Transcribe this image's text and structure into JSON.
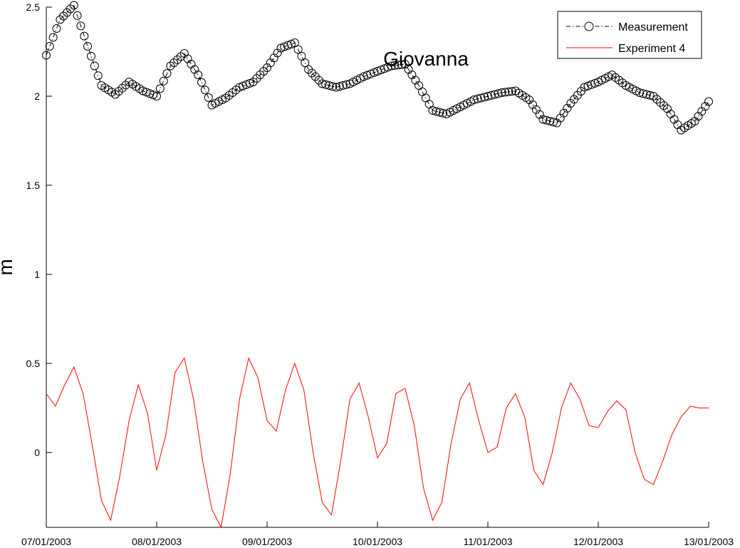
{
  "chart_data": {
    "type": "line",
    "title": "Giovanna",
    "xlabel": "",
    "ylabel": "m",
    "xlim": [
      "07/01/2003",
      "13/01/2003"
    ],
    "ylim": [
      -0.42,
      2.5
    ],
    "x_ticks": [
      "07/01/2003",
      "08/01/2003",
      "09/01/2003",
      "10/01/2003",
      "11/01/2003",
      "12/01/2003",
      "13/01/2003"
    ],
    "y_ticks": [
      0,
      0.5,
      1,
      1.5,
      2,
      2.5
    ],
    "y_tick_labels": [
      "0",
      "0.5",
      "1",
      "1.5",
      "2",
      "2.5"
    ],
    "grid": false,
    "legend_position": "top-right",
    "series": [
      {
        "name": "Measurement",
        "color": "#000000",
        "line_style": "dash-dot",
        "marker": "circle",
        "x": [
          "07/01/2003 00:00",
          "07/01/2003 03:00",
          "07/01/2003 06:00",
          "07/01/2003 09:00",
          "07/01/2003 12:00",
          "07/01/2003 15:00",
          "07/01/2003 18:00",
          "07/01/2003 21:00",
          "08/01/2003 00:00",
          "08/01/2003 03:00",
          "08/01/2003 06:00",
          "08/01/2003 09:00",
          "08/01/2003 12:00",
          "08/01/2003 15:00",
          "08/01/2003 18:00",
          "08/01/2003 21:00",
          "09/01/2003 00:00",
          "09/01/2003 03:00",
          "09/01/2003 06:00",
          "09/01/2003 09:00",
          "09/01/2003 12:00",
          "09/01/2003 15:00",
          "09/01/2003 18:00",
          "09/01/2003 21:00",
          "10/01/2003 00:00",
          "10/01/2003 03:00",
          "10/01/2003 06:00",
          "10/01/2003 09:00",
          "10/01/2003 12:00",
          "10/01/2003 15:00",
          "10/01/2003 18:00",
          "10/01/2003 21:00",
          "11/01/2003 00:00",
          "11/01/2003 03:00",
          "11/01/2003 06:00",
          "11/01/2003 09:00",
          "11/01/2003 12:00",
          "11/01/2003 15:00",
          "11/01/2003 18:00",
          "11/01/2003 21:00",
          "12/01/2003 00:00",
          "12/01/2003 03:00",
          "12/01/2003 06:00",
          "12/01/2003 09:00",
          "12/01/2003 12:00",
          "12/01/2003 15:00",
          "12/01/2003 18:00",
          "12/01/2003 21:00",
          "13/01/2003 00:00"
        ],
        "y": [
          2.23,
          2.43,
          2.51,
          2.28,
          2.06,
          2.01,
          2.08,
          2.03,
          2.0,
          2.17,
          2.24,
          2.12,
          1.95,
          1.99,
          2.05,
          2.08,
          2.16,
          2.27,
          2.3,
          2.15,
          2.07,
          2.05,
          2.07,
          2.11,
          2.14,
          2.17,
          2.18,
          2.06,
          1.92,
          1.9,
          1.94,
          1.98,
          2.0,
          2.02,
          2.03,
          1.98,
          1.87,
          1.85,
          1.96,
          2.05,
          2.08,
          2.12,
          2.06,
          2.02,
          2.0,
          1.93,
          1.81,
          1.86,
          1.97
        ]
      },
      {
        "name": "Experiment 4",
        "color": "#ff0000",
        "line_style": "solid",
        "marker": "none",
        "x": [
          "07/01/2003 00:00",
          "07/01/2003 02:00",
          "07/01/2003 04:00",
          "07/01/2003 06:00",
          "07/01/2003 08:00",
          "07/01/2003 10:00",
          "07/01/2003 12:00",
          "07/01/2003 14:00",
          "07/01/2003 16:00",
          "07/01/2003 18:00",
          "07/01/2003 20:00",
          "07/01/2003 22:00",
          "08/01/2003 00:00",
          "08/01/2003 02:00",
          "08/01/2003 04:00",
          "08/01/2003 06:00",
          "08/01/2003 08:00",
          "08/01/2003 10:00",
          "08/01/2003 12:00",
          "08/01/2003 14:00",
          "08/01/2003 16:00",
          "08/01/2003 18:00",
          "08/01/2003 20:00",
          "08/01/2003 22:00",
          "09/01/2003 00:00",
          "09/01/2003 02:00",
          "09/01/2003 04:00",
          "09/01/2003 06:00",
          "09/01/2003 08:00",
          "09/01/2003 10:00",
          "09/01/2003 12:00",
          "09/01/2003 14:00",
          "09/01/2003 16:00",
          "09/01/2003 18:00",
          "09/01/2003 20:00",
          "09/01/2003 22:00",
          "10/01/2003 00:00",
          "10/01/2003 02:00",
          "10/01/2003 04:00",
          "10/01/2003 06:00",
          "10/01/2003 08:00",
          "10/01/2003 10:00",
          "10/01/2003 12:00",
          "10/01/2003 14:00",
          "10/01/2003 16:00",
          "10/01/2003 18:00",
          "10/01/2003 20:00",
          "10/01/2003 22:00",
          "11/01/2003 00:00",
          "11/01/2003 02:00",
          "11/01/2003 04:00",
          "11/01/2003 06:00",
          "11/01/2003 08:00",
          "11/01/2003 10:00",
          "11/01/2003 12:00",
          "11/01/2003 14:00",
          "11/01/2003 16:00",
          "11/01/2003 18:00",
          "11/01/2003 20:00",
          "11/01/2003 22:00",
          "12/01/2003 00:00",
          "12/01/2003 02:00",
          "12/01/2003 04:00",
          "12/01/2003 06:00",
          "12/01/2003 08:00",
          "12/01/2003 10:00",
          "12/01/2003 12:00",
          "12/01/2003 14:00",
          "12/01/2003 16:00",
          "12/01/2003 18:00",
          "12/01/2003 20:00",
          "12/01/2003 22:00",
          "13/01/2003 00:00"
        ],
        "y": [
          0.33,
          0.26,
          0.38,
          0.48,
          0.33,
          0.04,
          -0.27,
          -0.38,
          -0.13,
          0.18,
          0.38,
          0.22,
          -0.1,
          0.1,
          0.45,
          0.53,
          0.3,
          -0.05,
          -0.32,
          -0.42,
          -0.12,
          0.3,
          0.53,
          0.42,
          0.18,
          0.12,
          0.35,
          0.5,
          0.35,
          0.0,
          -0.28,
          -0.35,
          -0.05,
          0.3,
          0.39,
          0.2,
          -0.03,
          0.05,
          0.33,
          0.36,
          0.15,
          -0.2,
          -0.38,
          -0.28,
          0.05,
          0.3,
          0.39,
          0.18,
          0.0,
          0.03,
          0.25,
          0.33,
          0.2,
          -0.1,
          -0.18,
          0.0,
          0.25,
          0.39,
          0.3,
          0.15,
          0.14,
          0.23,
          0.29,
          0.24,
          0.0,
          -0.15,
          -0.18,
          -0.05,
          0.1,
          0.2,
          0.26,
          0.25,
          0.25
        ]
      }
    ]
  }
}
